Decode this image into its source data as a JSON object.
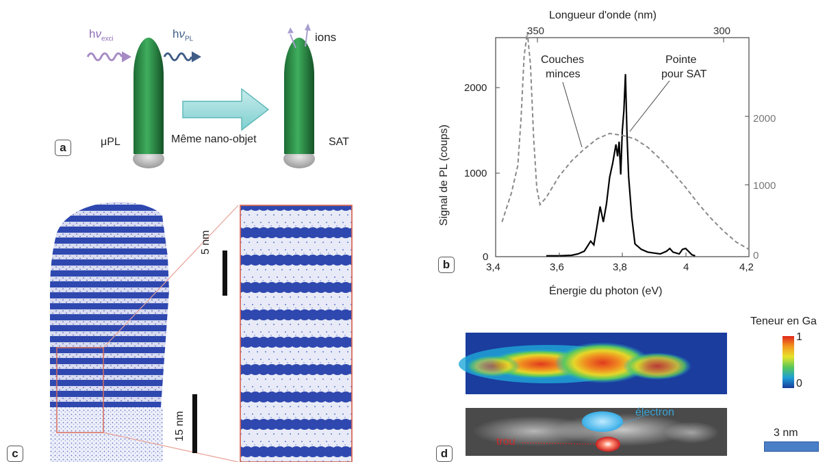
{
  "panel_a": {
    "label": "a",
    "h_symbol": "h",
    "nu_symbol": "ν",
    "exci_sub": "exci",
    "pl_sub": "PL",
    "ions": "ions",
    "mu_pl": "μPL",
    "meme": "Même nano-objet",
    "sat": "SAT"
  },
  "panel_b": {
    "label": "b",
    "top_axis_title": "Longueur d'onde (nm)",
    "top_ticks": [
      "350",
      "300"
    ],
    "left_axis_title": "Signal de PL (coups)",
    "left_ticks": [
      "0",
      "1000",
      "2000"
    ],
    "right_ticks": [
      "0",
      "1000",
      "2000"
    ],
    "bottom_ticks": [
      "3,4",
      "3,6",
      "3,8",
      "4",
      "4,2"
    ],
    "bottom_axis_title": "Énergie du photon (eV)",
    "annot_couches_line1": "Couches",
    "annot_couches_line2": "minces",
    "annot_pointe_line1": "Pointe",
    "annot_pointe_line2": "pour SAT"
  },
  "panel_c": {
    "label": "c",
    "scale_5nm": "5 nm",
    "scale_15nm": "15 nm"
  },
  "panel_d": {
    "label": "d",
    "colorbar_title": "Teneur en Ga",
    "colorbar_max": "1",
    "colorbar_min": "0",
    "electron": "électron",
    "trou": "trou",
    "scale_3nm": "3 nm"
  },
  "chart_data": {
    "type": "line",
    "xlabel": "Énergie du photon (eV)",
    "ylabel": "Signal de PL (coups)",
    "xlim": [
      3.4,
      4.2
    ],
    "ylim": [
      0,
      2400
    ],
    "series": [
      {
        "name": "Pointe pour SAT",
        "style": "solid",
        "color": "#000000",
        "x": [
          3.56,
          3.6,
          3.64,
          3.66,
          3.68,
          3.7,
          3.71,
          3.72,
          3.73,
          3.74,
          3.75,
          3.76,
          3.77,
          3.78,
          3.785,
          3.79,
          3.795,
          3.8,
          3.805,
          3.81,
          3.815,
          3.82,
          3.83,
          3.84,
          3.86,
          3.88,
          3.9,
          3.92,
          3.94,
          3.95,
          3.96,
          3.98,
          3.99,
          4.0,
          4.02,
          4.03
        ],
        "y": [
          10,
          10,
          15,
          30,
          60,
          170,
          130,
          330,
          550,
          380,
          580,
          870,
          1030,
          1230,
          1100,
          1260,
          900,
          1380,
          1600,
          2000,
          1330,
          880,
          430,
          140,
          80,
          50,
          40,
          30,
          60,
          90,
          50,
          30,
          80,
          90,
          20,
          10
        ]
      },
      {
        "name": "Couches minces",
        "style": "dashed",
        "color": "#888888",
        "x": [
          3.42,
          3.45,
          3.47,
          3.48,
          3.49,
          3.5,
          3.51,
          3.52,
          3.53,
          3.54,
          3.56,
          3.6,
          3.64,
          3.68,
          3.72,
          3.76,
          3.8,
          3.84,
          3.88,
          3.92,
          3.96,
          4.0,
          4.04,
          4.08,
          4.12,
          4.16,
          4.2
        ],
        "y": [
          380,
          700,
          1000,
          1500,
          2200,
          2460,
          2100,
          1300,
          750,
          570,
          650,
          880,
          1050,
          1180,
          1290,
          1350,
          1330,
          1290,
          1200,
          1070,
          920,
          760,
          580,
          420,
          280,
          160,
          80
        ]
      }
    ]
  }
}
